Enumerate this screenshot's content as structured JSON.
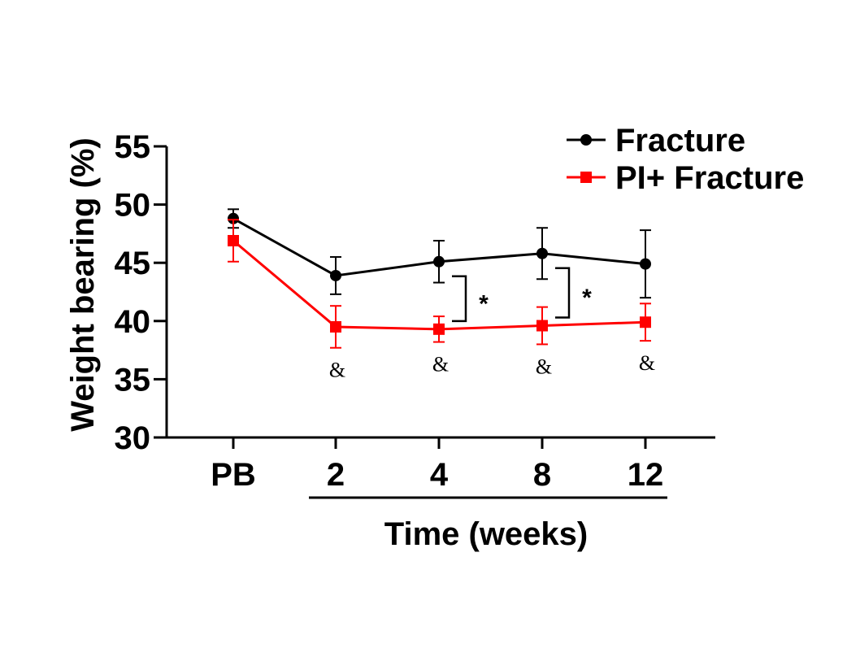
{
  "chart_data": {
    "type": "line",
    "ylabel": "Weight bearing (%)",
    "xlabel": "Time (weeks)",
    "ylim": [
      30,
      55
    ],
    "yticks": [
      30,
      35,
      40,
      45,
      50,
      55
    ],
    "categories": [
      "PB",
      "2",
      "4",
      "8",
      "12"
    ],
    "underlined_categories": [
      "2",
      "4",
      "8",
      "12"
    ],
    "legend_position": "top-right",
    "series": [
      {
        "name": "Fracture",
        "marker": "circle",
        "color": "#000000",
        "values": [
          48.8,
          43.9,
          45.1,
          45.8,
          44.9
        ],
        "error": [
          0.8,
          1.6,
          1.8,
          2.2,
          2.9
        ]
      },
      {
        "name": "PI+ Fracture",
        "marker": "square",
        "color": "#ff0000",
        "values": [
          46.9,
          39.5,
          39.3,
          39.6,
          39.9
        ],
        "error": [
          1.8,
          1.8,
          1.1,
          1.6,
          1.6
        ]
      }
    ],
    "annotations": {
      "amp_symbol": "&",
      "amp_categories": [
        "2",
        "4",
        "8",
        "12"
      ],
      "star_symbol": "*",
      "star_categories": [
        "4",
        "8"
      ]
    }
  }
}
